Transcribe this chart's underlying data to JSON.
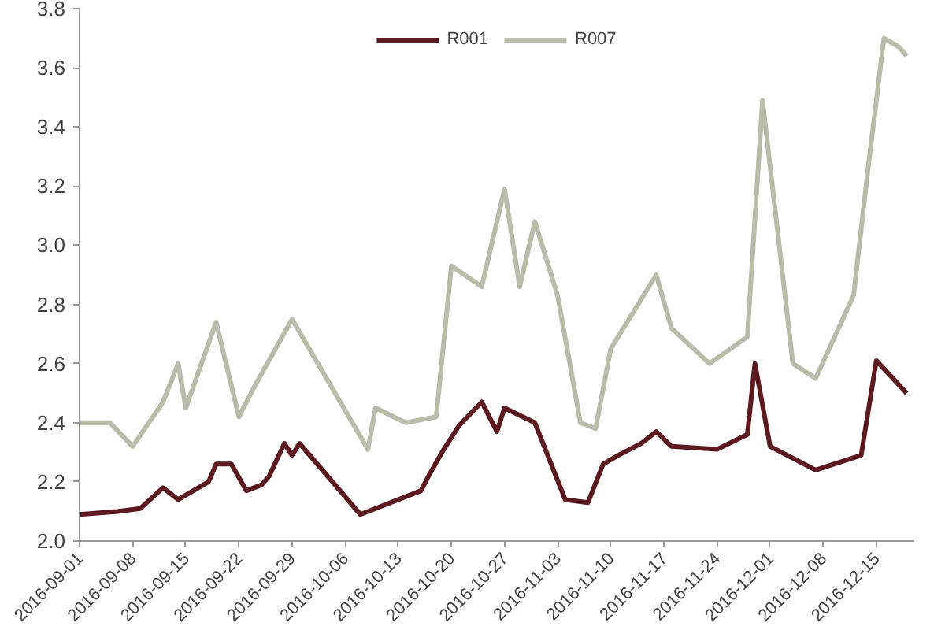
{
  "chart_data": {
    "type": "line",
    "xlim": [
      "2016-09-01",
      "2016-12-20"
    ],
    "xticks": [
      "2016-09-01",
      "2016-09-08",
      "2016-09-15",
      "2016-09-22",
      "2016-09-29",
      "2016-10-06",
      "2016-10-13",
      "2016-10-20",
      "2016-10-27",
      "2016-11-03",
      "2016-11-10",
      "2016-11-17",
      "2016-11-24",
      "2016-12-01",
      "2016-12-08",
      "2016-12-15"
    ],
    "ylim": [
      2.0,
      3.8
    ],
    "yticks": [
      {
        "value": 2.0,
        "label": "2.0"
      },
      {
        "value": 2.2,
        "label": "2.2"
      },
      {
        "value": 2.4,
        "label": "2.4"
      },
      {
        "value": 2.6,
        "label": "2.6"
      },
      {
        "value": 2.8,
        "label": "2.8"
      },
      {
        "value": 3.0,
        "label": "3.0"
      },
      {
        "value": 3.2,
        "label": "3.2"
      },
      {
        "value": 3.4,
        "label": "3.4"
      },
      {
        "value": 3.6,
        "label": "3.6"
      },
      {
        "value": 3.8,
        "label": "3.8"
      }
    ],
    "grid": false,
    "legend": "top",
    "marker": "none",
    "line_style": "solid",
    "series": [
      {
        "name": "R001",
        "color": "#5c1a1f",
        "x": [
          "2016-09-01",
          "2016-09-06",
          "2016-09-09",
          "2016-09-12",
          "2016-09-14",
          "2016-09-18",
          "2016-09-19",
          "2016-09-21",
          "2016-09-23",
          "2016-09-25",
          "2016-09-26",
          "2016-09-28",
          "2016-09-29",
          "2016-09-30",
          "2016-10-08",
          "2016-10-10",
          "2016-10-16",
          "2016-10-17",
          "2016-10-19",
          "2016-10-21",
          "2016-10-24",
          "2016-10-26",
          "2016-10-27",
          "2016-10-31",
          "2016-11-04",
          "2016-11-07",
          "2016-11-09",
          "2016-11-11",
          "2016-11-14",
          "2016-11-16",
          "2016-11-18",
          "2016-11-24",
          "2016-11-28",
          "2016-11-29",
          "2016-12-01",
          "2016-12-07",
          "2016-12-13",
          "2016-12-15",
          "2016-12-19"
        ],
        "values": [
          2.09,
          2.1,
          2.11,
          2.18,
          2.14,
          2.2,
          2.26,
          2.26,
          2.17,
          2.19,
          2.22,
          2.33,
          2.29,
          2.33,
          2.09,
          2.11,
          2.17,
          2.22,
          2.31,
          2.39,
          2.47,
          2.37,
          2.45,
          2.4,
          2.14,
          2.13,
          2.26,
          2.29,
          2.33,
          2.37,
          2.32,
          2.31,
          2.36,
          2.6,
          2.32,
          2.24,
          2.29,
          2.61,
          2.5
        ]
      },
      {
        "name": "R007",
        "color": "#b8bca8",
        "x": [
          "2016-09-01",
          "2016-09-05",
          "2016-09-08",
          "2016-09-12",
          "2016-09-14",
          "2016-09-15",
          "2016-09-19",
          "2016-09-22",
          "2016-09-24",
          "2016-09-29",
          "2016-10-09",
          "2016-10-10",
          "2016-10-14",
          "2016-10-18",
          "2016-10-20",
          "2016-10-24",
          "2016-10-27",
          "2016-10-29",
          "2016-10-31",
          "2016-11-03",
          "2016-11-06",
          "2016-11-08",
          "2016-11-10",
          "2016-11-16",
          "2016-11-18",
          "2016-11-23",
          "2016-11-28",
          "2016-11-30",
          "2016-12-04",
          "2016-12-07",
          "2016-12-12",
          "2016-12-14",
          "2016-12-16",
          "2016-12-18",
          "2016-12-19"
        ],
        "values": [
          2.4,
          2.4,
          2.32,
          2.47,
          2.6,
          2.45,
          2.74,
          2.42,
          2.52,
          2.75,
          2.31,
          2.45,
          2.4,
          2.42,
          2.93,
          2.86,
          3.19,
          2.86,
          3.08,
          2.83,
          2.4,
          2.38,
          2.65,
          2.9,
          2.72,
          2.6,
          2.69,
          3.49,
          2.6,
          2.55,
          2.83,
          3.28,
          3.7,
          3.67,
          3.64
        ]
      }
    ]
  }
}
